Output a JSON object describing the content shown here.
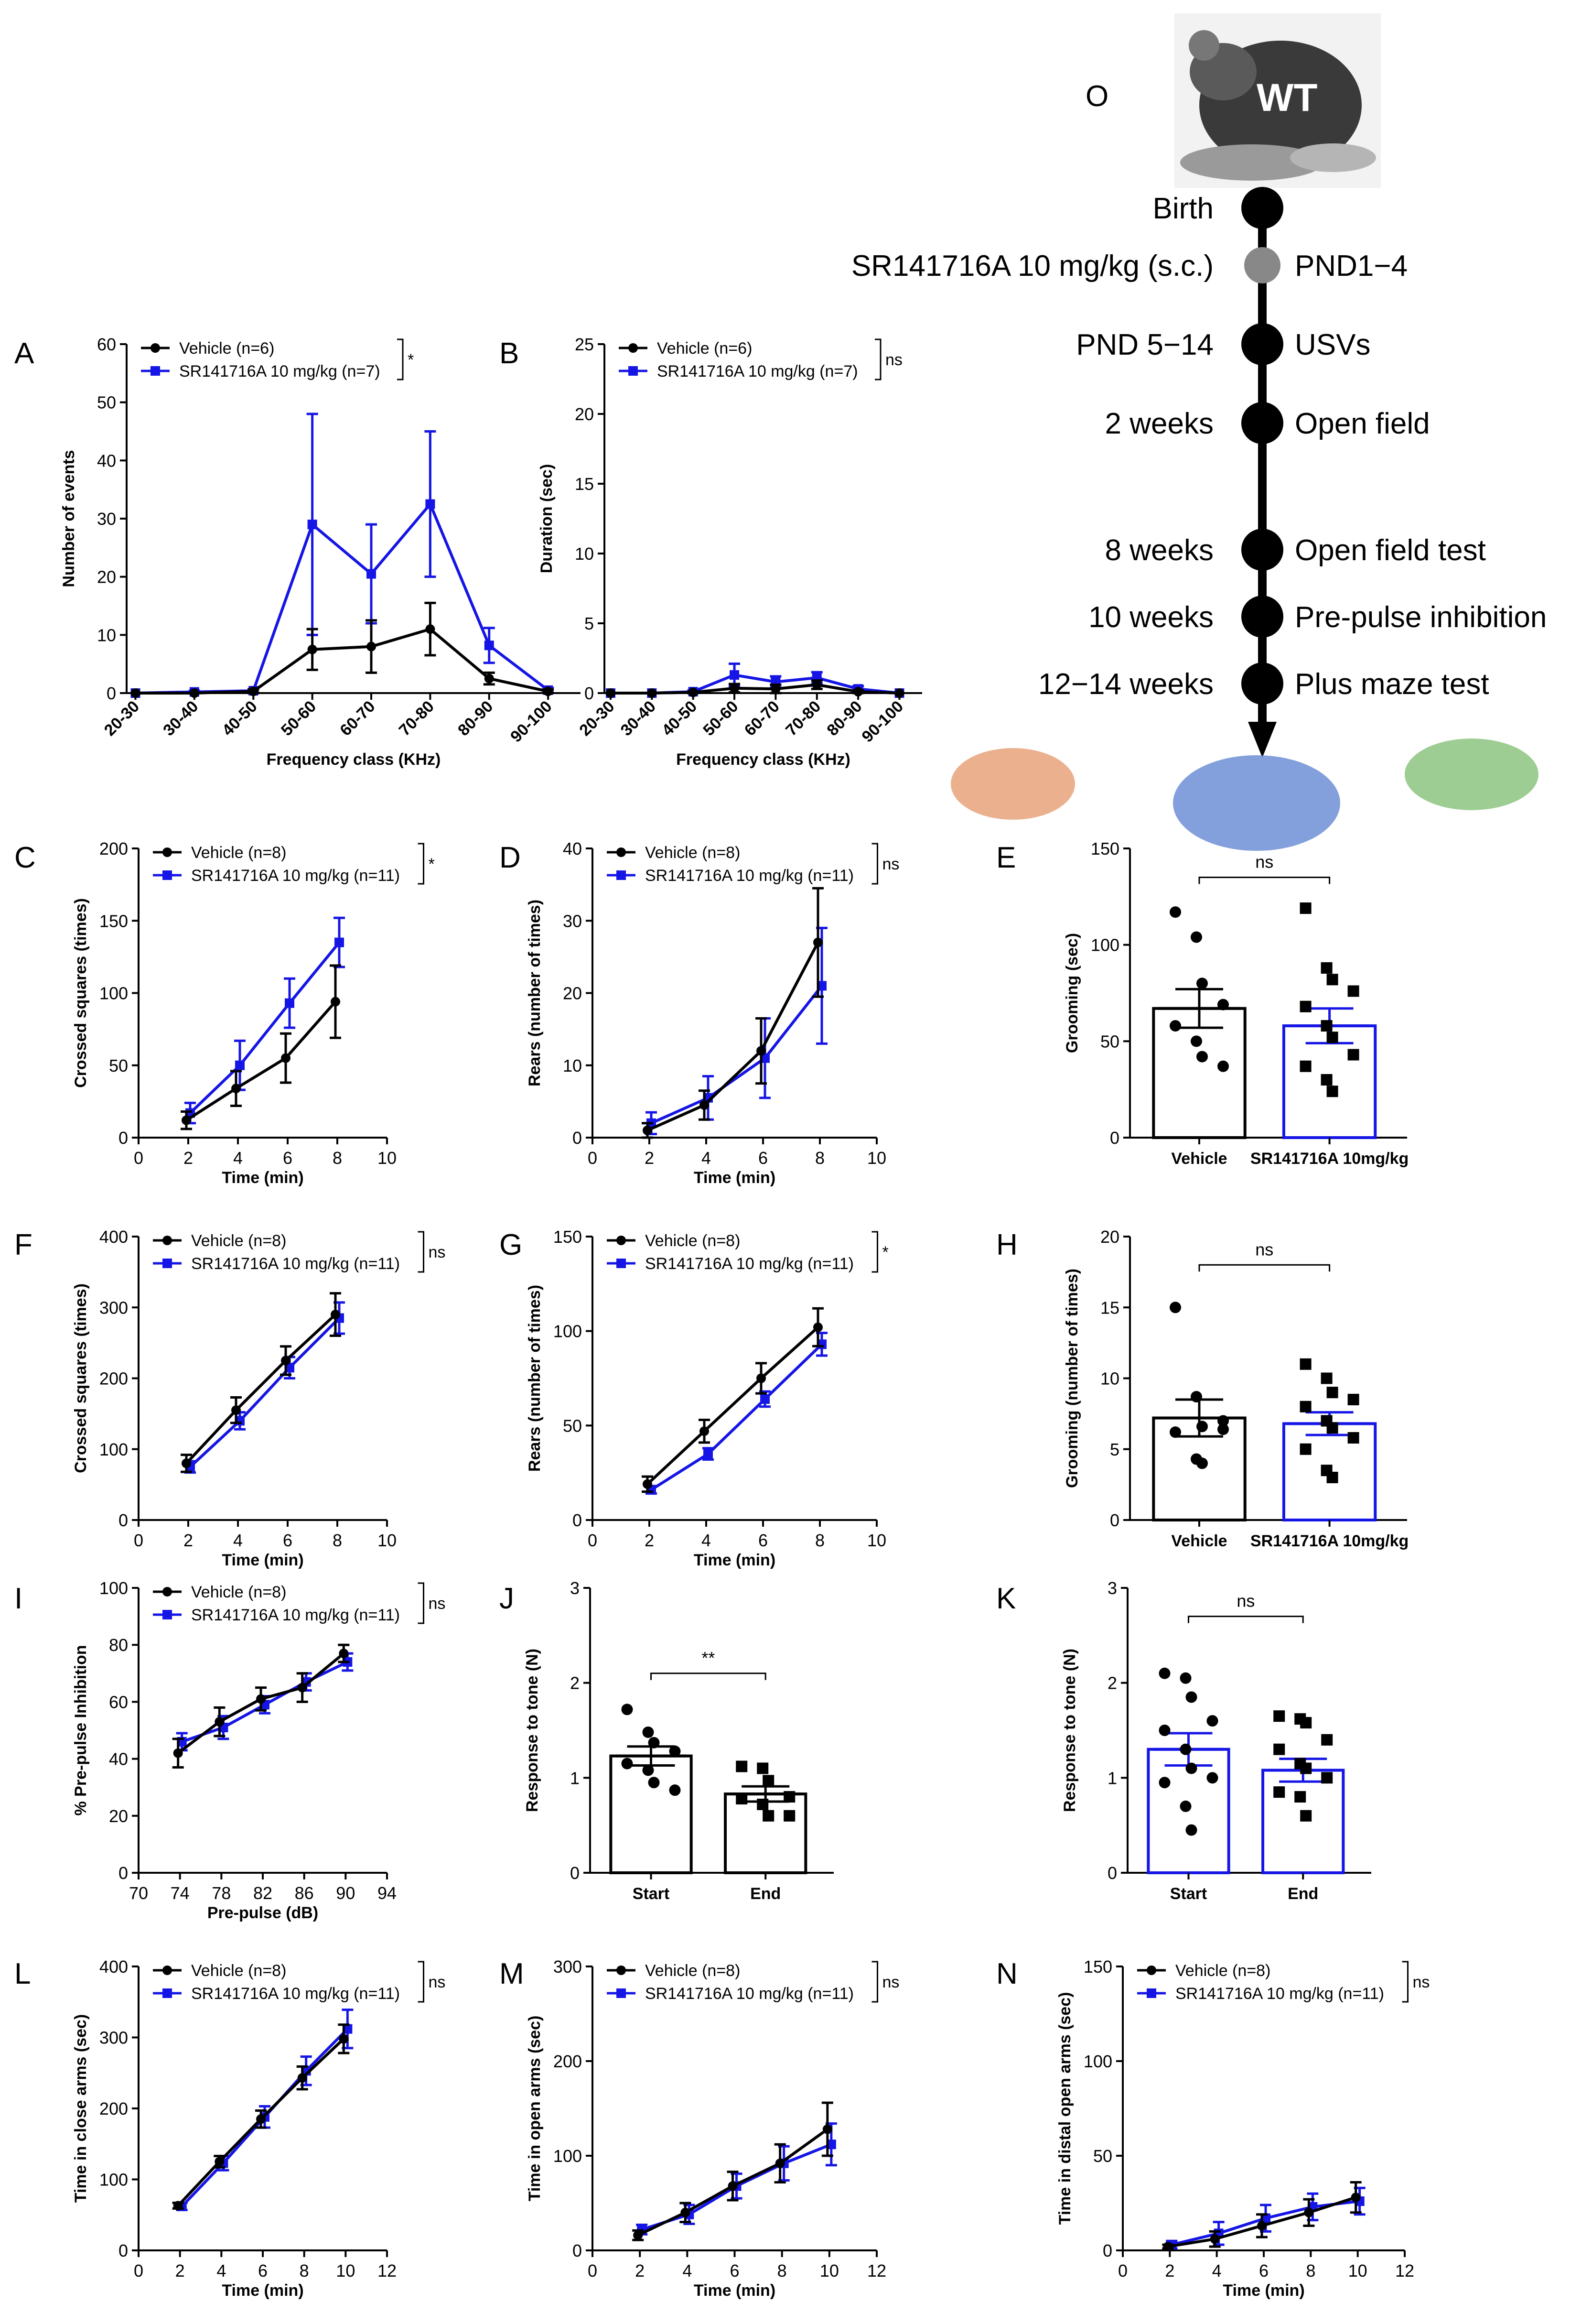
{
  "colors": {
    "vehicle": "#000000",
    "drug": "#1515e6",
    "grey_dot": "#888888"
  },
  "timeline": {
    "letter": "O",
    "badge": "WT",
    "events": [
      {
        "left": "Birth",
        "right": "",
        "dot": "black"
      },
      {
        "left": "SR141716A 10 mg/kg (s.c.)",
        "right": "PND1−4",
        "dot": "grey"
      },
      {
        "left": "PND 5−14",
        "right": "USVs",
        "dot": "black"
      },
      {
        "left": "2 weeks",
        "right": "Open field",
        "dot": "black"
      },
      {
        "left": "8 weeks",
        "right": "Open field test",
        "dot": "black"
      },
      {
        "left": "10 weeks",
        "right": "Pre-pulse inhibition",
        "dot": "black"
      },
      {
        "left": "12−14 weeks",
        "right": "Plus maze test",
        "dot": "black"
      }
    ]
  },
  "chart_data": [
    {
      "id": "A",
      "type": "line",
      "xlabel": "Frequency class (KHz)",
      "ylabel": "Number of events",
      "categories": [
        "20-30",
        "30-40",
        "40-50",
        "50-60",
        "60-70",
        "70-80",
        "80-90",
        "90-100"
      ],
      "ylim": [
        0,
        60
      ],
      "yticks": [
        0,
        10,
        20,
        30,
        40,
        50,
        60
      ],
      "sig": "*",
      "series": [
        {
          "name": "Vehicle (n=6)",
          "color": "vehicle",
          "values": [
            0,
            0,
            0.3,
            7.5,
            8,
            11,
            2.5,
            0.3
          ],
          "errors": [
            0,
            0,
            0.3,
            3.5,
            4.5,
            4.5,
            1,
            0.3
          ]
        },
        {
          "name": "SR141716A 10 mg/kg (n=7)",
          "color": "drug",
          "values": [
            0,
            0.2,
            0.4,
            29,
            20.5,
            32.5,
            8.2,
            0.5
          ],
          "errors": [
            0,
            0.2,
            0.3,
            19,
            8.5,
            12.5,
            3,
            0.4
          ]
        }
      ]
    },
    {
      "id": "B",
      "type": "line",
      "xlabel": "Frequency class (KHz)",
      "ylabel": "Duration (sec)",
      "categories": [
        "20-30",
        "30-40",
        "40-50",
        "50-60",
        "60-70",
        "70-80",
        "80-90",
        "90-100"
      ],
      "ylim": [
        0,
        25
      ],
      "yticks": [
        0,
        5,
        10,
        15,
        20,
        25
      ],
      "sig": "ns",
      "series": [
        {
          "name": "Vehicle (n=6)",
          "color": "vehicle",
          "values": [
            0,
            0,
            0.05,
            0.35,
            0.3,
            0.6,
            0.1,
            0
          ],
          "errors": [
            0,
            0,
            0.05,
            0.3,
            0.3,
            0.3,
            0.1,
            0
          ]
        },
        {
          "name": "SR141716A 10 mg/kg (n=7)",
          "color": "drug",
          "values": [
            0,
            0,
            0.1,
            1.3,
            0.8,
            1.1,
            0.3,
            0
          ],
          "errors": [
            0,
            0,
            0.1,
            0.8,
            0.4,
            0.4,
            0.2,
            0
          ]
        }
      ]
    },
    {
      "id": "C",
      "type": "line",
      "xlabel": "Time (min)",
      "ylabel": "Crossed squares (times)",
      "xlim": [
        0,
        10
      ],
      "xticks": [
        0,
        2,
        4,
        6,
        8,
        10
      ],
      "ylim": [
        0,
        200
      ],
      "yticks": [
        0,
        50,
        100,
        150,
        200
      ],
      "sig": "*",
      "series": [
        {
          "name": "Vehicle (n=8)",
          "color": "vehicle",
          "x": [
            2,
            4,
            6,
            8
          ],
          "values": [
            12,
            34,
            55,
            94
          ],
          "errors": [
            6,
            12,
            17,
            25
          ]
        },
        {
          "name": "SR141716A 10 mg/kg (n=11)",
          "color": "drug",
          "x": [
            2,
            4,
            6,
            8
          ],
          "values": [
            17,
            50,
            93,
            135
          ],
          "errors": [
            7,
            17,
            17,
            17
          ]
        }
      ]
    },
    {
      "id": "D",
      "type": "line",
      "xlabel": "Time (min)",
      "ylabel": "Rears (number of times)",
      "xlim": [
        0,
        10
      ],
      "xticks": [
        0,
        2,
        4,
        6,
        8,
        10
      ],
      "ylim": [
        0,
        40
      ],
      "yticks": [
        0,
        10,
        20,
        30,
        40
      ],
      "sig": "ns",
      "series": [
        {
          "name": "Vehicle (n=8)",
          "color": "vehicle",
          "x": [
            2,
            4,
            6,
            8
          ],
          "values": [
            1,
            4.5,
            12,
            27
          ],
          "errors": [
            1,
            2,
            4.5,
            7.5
          ]
        },
        {
          "name": "SR141716A 10 mg/kg (n=11)",
          "color": "drug",
          "x": [
            2,
            4,
            6,
            8
          ],
          "values": [
            2,
            5.5,
            11,
            21
          ],
          "errors": [
            1.5,
            3,
            5.5,
            8
          ]
        }
      ]
    },
    {
      "id": "E",
      "type": "bar",
      "ylabel": "Grooming (sec)",
      "categories": [
        "Vehicle",
        "SR141716A  10mg/kg"
      ],
      "ylim": [
        0,
        150
      ],
      "yticks": [
        0,
        50,
        100,
        150
      ],
      "sig": "ns",
      "values": [
        67,
        58
      ],
      "errors": [
        10,
        9
      ],
      "bar_colors": [
        "vehicle",
        "drug"
      ],
      "points": [
        [
          117,
          104,
          80,
          69,
          58,
          50,
          42,
          37
        ],
        [
          119,
          88,
          82,
          76,
          68,
          58,
          52,
          43,
          37,
          30,
          24
        ]
      ]
    },
    {
      "id": "F",
      "type": "line",
      "xlabel": "Time (min)",
      "ylabel": "Crossed squares (times)",
      "xlim": [
        0,
        10
      ],
      "xticks": [
        0,
        2,
        4,
        6,
        8,
        10
      ],
      "ylim": [
        0,
        400
      ],
      "yticks": [
        0,
        100,
        200,
        300,
        400
      ],
      "sig": "ns",
      "series": [
        {
          "name": "Vehicle (n=8)",
          "color": "vehicle",
          "x": [
            2,
            4,
            6,
            8
          ],
          "values": [
            80,
            155,
            225,
            290
          ],
          "errors": [
            12,
            18,
            20,
            30
          ]
        },
        {
          "name": "SR141716A 10 mg/kg (n=11)",
          "color": "drug",
          "x": [
            2,
            4,
            6,
            8
          ],
          "values": [
            75,
            140,
            215,
            285
          ],
          "errors": [
            8,
            12,
            15,
            22
          ]
        }
      ]
    },
    {
      "id": "G",
      "type": "line",
      "xlabel": "Time (min)",
      "ylabel": "Rears (number of times)",
      "xlim": [
        0,
        10
      ],
      "xticks": [
        0,
        2,
        4,
        6,
        8,
        10
      ],
      "ylim": [
        0,
        150
      ],
      "yticks": [
        0,
        50,
        100,
        150
      ],
      "sig": "*",
      "series": [
        {
          "name": "Vehicle (n=8)",
          "color": "vehicle",
          "x": [
            2,
            4,
            6,
            8
          ],
          "values": [
            19,
            47,
            75,
            102
          ],
          "errors": [
            4,
            6,
            8,
            10
          ]
        },
        {
          "name": "SR141716A 10 mg/kg (n=11)",
          "color": "drug",
          "x": [
            2,
            4,
            6,
            8
          ],
          "values": [
            16,
            35,
            64,
            93
          ],
          "errors": [
            2,
            3,
            4,
            6
          ]
        }
      ]
    },
    {
      "id": "H",
      "type": "bar",
      "ylabel": "Grooming (number of times)",
      "categories": [
        "Vehicle",
        "SR141716A  10mg/kg"
      ],
      "ylim": [
        0,
        20
      ],
      "yticks": [
        0,
        5,
        10,
        15,
        20
      ],
      "sig": "ns",
      "values": [
        7.2,
        6.8
      ],
      "errors": [
        1.3,
        0.8
      ],
      "bar_colors": [
        "vehicle",
        "drug"
      ],
      "points": [
        [
          15,
          8.7,
          6.6,
          6.4,
          6.2,
          4.3,
          4,
          7
        ],
        [
          11,
          10,
          9,
          8.5,
          8,
          7,
          6.5,
          5.8,
          5,
          3.5,
          3
        ]
      ]
    },
    {
      "id": "I",
      "type": "line",
      "xlabel": "Pre-pulse (dB)",
      "ylabel": "% Pre-pulse Inhibition",
      "xlim": [
        70,
        94
      ],
      "xticks": [
        70,
        74,
        78,
        82,
        86,
        90,
        94
      ],
      "ylim": [
        0,
        100
      ],
      "yticks": [
        0,
        20,
        40,
        60,
        80,
        100
      ],
      "sig": "ns",
      "series": [
        {
          "name": "Vehicle (n=8)",
          "color": "vehicle",
          "x": [
            74,
            78,
            82,
            86,
            90
          ],
          "values": [
            42,
            53,
            61,
            65,
            77
          ],
          "errors": [
            5,
            5,
            4,
            5,
            3
          ]
        },
        {
          "name": "SR141716A 10 mg/kg (n=11)",
          "color": "drug",
          "x": [
            74,
            78,
            82,
            86,
            90
          ],
          "values": [
            46,
            51,
            59,
            67,
            74
          ],
          "errors": [
            3,
            4,
            3,
            3,
            3
          ]
        }
      ]
    },
    {
      "id": "J",
      "type": "bar",
      "ylabel": "Response to tone (N)",
      "categories": [
        "Start",
        "End"
      ],
      "ylim": [
        0,
        3
      ],
      "yticks": [
        0,
        1,
        2,
        3
      ],
      "sig": "**",
      "values": [
        1.23,
        0.83
      ],
      "errors": [
        0.1,
        0.08
      ],
      "bar_colors": [
        "vehicle",
        "vehicle"
      ],
      "points": [
        [
          1.72,
          1.48,
          1.37,
          1.28,
          1.15,
          1.08,
          0.95,
          0.87
        ],
        [
          1.12,
          1.1,
          0.97,
          0.8,
          0.78,
          0.72,
          0.6,
          0.6
        ]
      ]
    },
    {
      "id": "K",
      "type": "bar",
      "ylabel": "Response to tone (N)",
      "categories": [
        "Start",
        "End"
      ],
      "ylim": [
        0,
        3
      ],
      "yticks": [
        0,
        1,
        2,
        3
      ],
      "sig": "ns",
      "values": [
        1.3,
        1.08
      ],
      "errors": [
        0.17,
        0.12
      ],
      "bar_colors": [
        "drug",
        "drug"
      ],
      "points": [
        [
          2.1,
          2.05,
          1.85,
          1.6,
          1.5,
          1.3,
          1.1,
          1.0,
          0.95,
          0.7,
          0.45
        ],
        [
          1.65,
          1.62,
          1.58,
          1.4,
          1.3,
          1.15,
          1.1,
          1.0,
          0.85,
          0.8,
          0.6
        ]
      ]
    },
    {
      "id": "L",
      "type": "line",
      "xlabel": "Time (min)",
      "ylabel": "Time in close arms (sec)",
      "xlim": [
        0,
        12
      ],
      "xticks": [
        0,
        2,
        4,
        6,
        8,
        10,
        12
      ],
      "ylim": [
        0,
        400
      ],
      "yticks": [
        0,
        100,
        200,
        300,
        400
      ],
      "sig": "ns",
      "series": [
        {
          "name": "Vehicle (n=8)",
          "color": "vehicle",
          "x": [
            2,
            4,
            6,
            8,
            10
          ],
          "values": [
            63,
            125,
            185,
            243,
            298
          ],
          "errors": [
            4,
            8,
            12,
            16,
            20
          ]
        },
        {
          "name": "SR141716A 10 mg/kg (n=11)",
          "color": "drug",
          "x": [
            2,
            4,
            6,
            8,
            10
          ],
          "values": [
            62,
            123,
            188,
            253,
            312
          ],
          "errors": [
            5,
            10,
            15,
            20,
            27
          ]
        }
      ]
    },
    {
      "id": "M",
      "type": "line",
      "xlabel": "Time (min)",
      "ylabel": "Time in open arms (sec)",
      "xlim": [
        0,
        12
      ],
      "xticks": [
        0,
        2,
        4,
        6,
        8,
        10,
        12
      ],
      "ylim": [
        0,
        300
      ],
      "yticks": [
        0,
        100,
        200,
        300
      ],
      "sig": "ns",
      "series": [
        {
          "name": "Vehicle (n=8)",
          "color": "vehicle",
          "x": [
            2,
            4,
            6,
            8,
            10
          ],
          "values": [
            16,
            40,
            68,
            92,
            128
          ],
          "errors": [
            5,
            10,
            15,
            20,
            28
          ]
        },
        {
          "name": "SR141716A 10 mg/kg (n=11)",
          "color": "drug",
          "x": [
            2,
            4,
            6,
            8,
            10
          ],
          "values": [
            22,
            38,
            68,
            92,
            112
          ],
          "errors": [
            5,
            10,
            13,
            18,
            22
          ]
        }
      ]
    },
    {
      "id": "N",
      "type": "line",
      "xlabel": "Time (min)",
      "ylabel": "Time in distal open arms (sec)",
      "xlim": [
        0,
        12
      ],
      "xticks": [
        0,
        2,
        4,
        6,
        8,
        10,
        12
      ],
      "ylim": [
        0,
        150
      ],
      "yticks": [
        0,
        50,
        100,
        150
      ],
      "sig": "ns",
      "series": [
        {
          "name": "Vehicle (n=8)",
          "color": "vehicle",
          "x": [
            2,
            4,
            6,
            8,
            10
          ],
          "values": [
            2,
            6,
            13,
            20,
            28
          ],
          "errors": [
            1,
            4,
            6,
            7,
            8
          ]
        },
        {
          "name": "SR141716A 10 mg/kg (n=11)",
          "color": "drug",
          "x": [
            2,
            4,
            6,
            8,
            10
          ],
          "values": [
            3,
            9,
            17,
            23,
            26
          ],
          "errors": [
            2,
            6,
            7,
            7,
            7
          ]
        }
      ]
    }
  ]
}
